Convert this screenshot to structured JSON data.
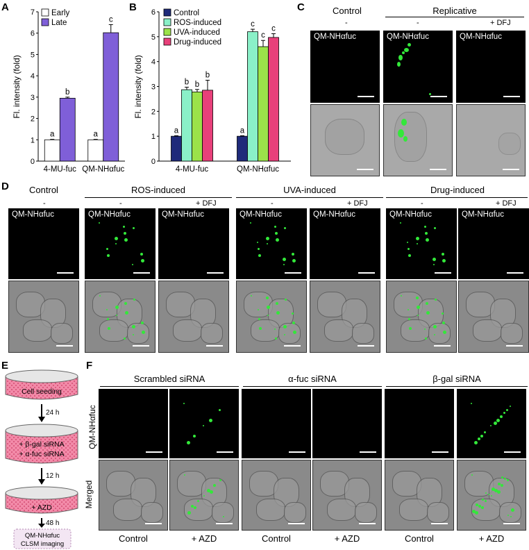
{
  "panels": {
    "A": "A",
    "B": "B",
    "C": "C",
    "D": "D",
    "E": "E",
    "F": "F"
  },
  "chart_data": [
    {
      "type": "bar",
      "ylabel": "Fl. intensity (fold)",
      "ylim": [
        0,
        7
      ],
      "yticks": [
        "0",
        "1",
        "2",
        "3",
        "4",
        "5",
        "6",
        "7"
      ],
      "categories": [
        "4-MU-fuc",
        "QM-NHαfuc"
      ],
      "series": [
        {
          "name": "Early",
          "values": [
            1.0,
            1.0
          ],
          "errors": [
            0.02,
            0.02
          ],
          "color": "#ffffff",
          "letters": [
            "a",
            "a"
          ]
        },
        {
          "name": "Late",
          "values": [
            2.95,
            6.02
          ],
          "errors": [
            0.05,
            0.38
          ],
          "color": "#7f5fd8",
          "letters": [
            "b",
            "c"
          ]
        }
      ],
      "legend": "top-left"
    },
    {
      "type": "bar",
      "ylabel": "Fl. intensity (fold)",
      "ylim": [
        0,
        6
      ],
      "yticks": [
        "0",
        "1",
        "2",
        "3",
        "4",
        "5",
        "6"
      ],
      "categories": [
        "4-MU-fuc",
        "QM-NHαfuc"
      ],
      "series": [
        {
          "name": "Control",
          "values": [
            1.0,
            1.0
          ],
          "errors": [
            0.02,
            0.02
          ],
          "color": "#1f2a7a",
          "letters": [
            "a",
            "a"
          ]
        },
        {
          "name": "ROS-induced",
          "values": [
            2.87,
            5.2
          ],
          "errors": [
            0.1,
            0.1
          ],
          "color": "#8af0c8",
          "letters": [
            "b",
            "c"
          ]
        },
        {
          "name": "UVA-induced",
          "values": [
            2.78,
            4.6
          ],
          "errors": [
            0.1,
            0.25
          ],
          "color": "#9be24a",
          "letters": [
            "b",
            "c"
          ]
        },
        {
          "name": "Drug-induced",
          "values": [
            2.85,
            4.97
          ],
          "errors": [
            0.4,
            0.15
          ],
          "color": "#e8407a",
          "letters": [
            "b",
            "c"
          ]
        }
      ],
      "legend": "top-left"
    }
  ],
  "panelC": {
    "control": "Control",
    "replicative": "Replicative",
    "minus": "-",
    "dfj": "+ DFJ",
    "probe": "QM-NHαfuc"
  },
  "panelD": {
    "control": "Control",
    "ros": "ROS-induced",
    "uva": "UVA-induced",
    "drug": "Drug-induced",
    "minus": "-",
    "dfj": "+ DFJ",
    "probe": "QM-NHαfuc"
  },
  "panelE": {
    "step1": "Cell seeding",
    "t1": "24 h",
    "step2a": "+ β-gal siRNA",
    "step2b": "+ α-fuc siRNA",
    "t2": "12 h",
    "step3": "+ AZD",
    "t3": "48 h",
    "out1": "QM-NHαfuc",
    "out2": "CLSM imaging"
  },
  "panelF": {
    "scrambled": "Scrambled siRNA",
    "afuc": "α-fuc siRNA",
    "bgal": "β-gal siRNA",
    "rowProbe": "QM-NHαfuc",
    "rowMerged": "Merged",
    "control": "Control",
    "azd": "+ AZD"
  }
}
